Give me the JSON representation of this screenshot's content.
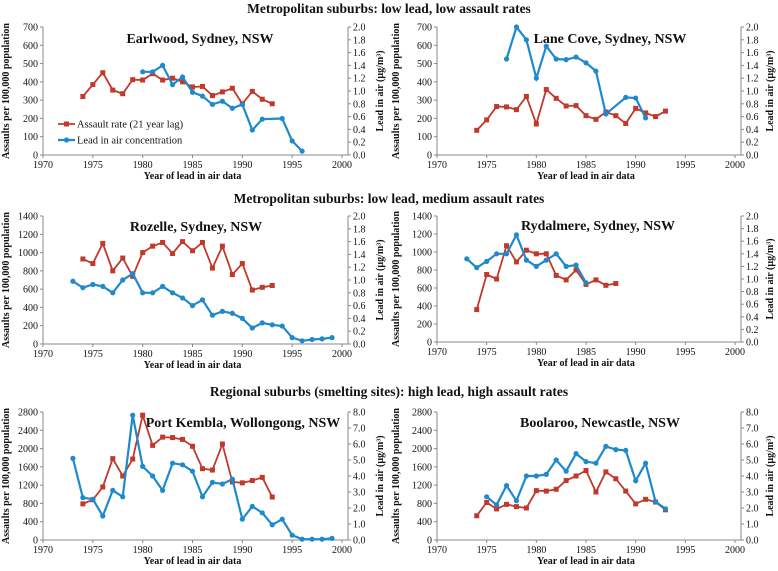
{
  "colors": {
    "assault": "#c0392b",
    "lead": "#1f8acb",
    "axis": "#888888"
  },
  "legend": {
    "assault": "Assault rate (21 year lag)",
    "lead": "Lead in air concentration"
  },
  "axis_titles": {
    "x": "Year of lead in air data",
    "y_left": "Assaults per 100,000 population",
    "y_right": "Lead in air (µg/m³)"
  },
  "sections": [
    "Metropolitan suburbs: low lead, low assault rates",
    "Metropolitan suburbs: low lead, medium assault rates",
    "Regional suburbs (smelting sites): high lead, high assault rates"
  ],
  "chart_data": [
    {
      "type": "line",
      "title": "Earlwood, Sydney, NSW",
      "xlabel": "Year of lead in air data",
      "ylabel": "Assaults per 100,000 population",
      "y2label": "Lead in air (µg/m³)",
      "xlim": [
        1970,
        2000
      ],
      "ylim": [
        0,
        700
      ],
      "y2lim": [
        0,
        2.0
      ],
      "legend": "left",
      "xticks": [
        1970,
        1975,
        1980,
        1985,
        1990,
        1995,
        2000
      ],
      "yticks": [
        0,
        100,
        200,
        300,
        400,
        500,
        600,
        700
      ],
      "y2ticks": [
        "0.0",
        "0.2",
        "0.4",
        "0.6",
        "0.8",
        "1.0",
        "1.2",
        "1.4",
        "1.6",
        "1.8",
        "2.0"
      ],
      "series": [
        {
          "name": "Assault rate (21 year lag)",
          "axis": "left",
          "x": [
            1974,
            1975,
            1976,
            1977,
            1978,
            1979,
            1980,
            1981,
            1982,
            1983,
            1984,
            1985,
            1986,
            1987,
            1988,
            1989,
            1990,
            1991,
            1992,
            1993
          ],
          "values": [
            320,
            385,
            450,
            355,
            335,
            412,
            410,
            445,
            410,
            420,
            400,
            372,
            375,
            325,
            345,
            365,
            280,
            348,
            305,
            280
          ]
        },
        {
          "name": "Lead in air concentration",
          "axis": "right",
          "x": [
            1980,
            1981,
            1982,
            1983,
            1984,
            1985,
            1986,
            1987,
            1988,
            1989,
            1990,
            1991,
            1992,
            1994,
            1995,
            1996
          ],
          "values": [
            1.3,
            1.3,
            1.4,
            1.1,
            1.22,
            0.98,
            0.92,
            0.79,
            0.84,
            0.73,
            0.79,
            0.39,
            0.56,
            0.57,
            0.22,
            0.06
          ]
        }
      ]
    },
    {
      "type": "line",
      "title": "Lane Cove, Sydney, NSW",
      "xlabel": "Year of lead in air data",
      "ylabel": "Assaults per 100,000 population",
      "y2label": "Lead in air (µg/m³)",
      "xlim": [
        1970,
        2000
      ],
      "ylim": [
        0,
        700
      ],
      "y2lim": [
        0,
        2.0
      ],
      "xticks": [
        1970,
        1975,
        1980,
        1985,
        1990,
        1995,
        2000
      ],
      "yticks": [
        0,
        100,
        200,
        300,
        400,
        500,
        600,
        700
      ],
      "y2ticks": [
        "0.0",
        "0.2",
        "0.4",
        "0.6",
        "0.8",
        "1.0",
        "1.2",
        "1.4",
        "1.6",
        "1.8",
        "2.0"
      ],
      "series": [
        {
          "name": "Assault rate (21 year lag)",
          "axis": "left",
          "x": [
            1974,
            1975,
            1976,
            1977,
            1978,
            1979,
            1980,
            1981,
            1982,
            1983,
            1984,
            1985,
            1986,
            1987,
            1988,
            1989,
            1990,
            1991,
            1992,
            1993
          ],
          "values": [
            135,
            192,
            265,
            263,
            248,
            320,
            170,
            358,
            310,
            268,
            270,
            215,
            195,
            235,
            215,
            172,
            255,
            230,
            210,
            240
          ]
        },
        {
          "name": "Lead in air concentration",
          "axis": "right",
          "x": [
            1977,
            1978,
            1979,
            1980,
            1981,
            1982,
            1983,
            1984,
            1985,
            1986,
            1987,
            1989,
            1990,
            1991
          ],
          "values": [
            1.5,
            2.0,
            1.8,
            1.2,
            1.7,
            1.5,
            1.49,
            1.53,
            1.44,
            1.31,
            0.64,
            0.9,
            0.89,
            0.58
          ]
        }
      ]
    },
    {
      "type": "line",
      "title": "Rozelle, Sydney, NSW",
      "xlabel": "Year of lead in air data",
      "ylabel": "Assaults per 100,000 population",
      "y2label": "Lead in air (µg/m³)",
      "xlim": [
        1970,
        2000
      ],
      "ylim": [
        0,
        1400
      ],
      "y2lim": [
        0,
        2.0
      ],
      "xticks": [
        1970,
        1975,
        1980,
        1985,
        1990,
        1995,
        2000
      ],
      "yticks": [
        0,
        200,
        400,
        600,
        800,
        1000,
        1200,
        1400
      ],
      "y2ticks": [
        "0.0",
        "0.2",
        "0.4",
        "0.6",
        "0.8",
        "1.0",
        "1.2",
        "1.4",
        "1.6",
        "1.8",
        "2.0"
      ],
      "series": [
        {
          "name": "Assault rate (21 year lag)",
          "axis": "left",
          "x": [
            1974,
            1975,
            1976,
            1977,
            1978,
            1979,
            1980,
            1981,
            1982,
            1983,
            1984,
            1985,
            1986,
            1987,
            1988,
            1989,
            1990,
            1991,
            1992,
            1993
          ],
          "values": [
            930,
            880,
            1100,
            800,
            940,
            740,
            1000,
            1070,
            1110,
            990,
            1120,
            1020,
            1110,
            830,
            1070,
            760,
            880,
            590,
            620,
            640
          ]
        },
        {
          "name": "Lead in air concentration",
          "axis": "right",
          "x": [
            1973,
            1974,
            1975,
            1976,
            1977,
            1978,
            1979,
            1980,
            1981,
            1982,
            1983,
            1984,
            1985,
            1986,
            1987,
            1988,
            1989,
            1990,
            1991,
            1992,
            1993,
            1994,
            1995,
            1996,
            1997,
            1998,
            1999
          ],
          "values": [
            0.98,
            0.88,
            0.93,
            0.9,
            0.8,
            1.0,
            1.1,
            0.8,
            0.8,
            0.9,
            0.8,
            0.72,
            0.6,
            0.69,
            0.45,
            0.51,
            0.48,
            0.4,
            0.25,
            0.33,
            0.3,
            0.28,
            0.1,
            0.05,
            0.07,
            0.08,
            0.1
          ]
        }
      ]
    },
    {
      "type": "line",
      "title": "Rydalmere, Sydney, NSW",
      "xlabel": "Year of lead in air data",
      "ylabel": "Assaults per 100,000 population",
      "y2label": "Lead in air (µg/m³)",
      "xlim": [
        1970,
        2000
      ],
      "ylim": [
        0,
        1400
      ],
      "y2lim": [
        0,
        2.0
      ],
      "xticks": [
        1970,
        1975,
        1980,
        1985,
        1990,
        1995,
        2000
      ],
      "yticks": [
        0,
        200,
        400,
        600,
        800,
        1000,
        1200,
        1400
      ],
      "y2ticks": [
        "0.0",
        "0.2",
        "0.4",
        "0.6",
        "0.8",
        "1.0",
        "1.2",
        "1.4",
        "1.6",
        "1.8",
        "2.0"
      ],
      "series": [
        {
          "name": "Assault rate (21 year lag)",
          "axis": "left",
          "x": [
            1974,
            1975,
            1976,
            1977,
            1978,
            1979,
            1980,
            1981,
            1982,
            1983,
            1984,
            1985,
            1986,
            1987,
            1988
          ],
          "values": [
            360,
            750,
            700,
            1070,
            890,
            1020,
            980,
            980,
            740,
            690,
            800,
            640,
            690,
            630,
            650
          ]
        },
        {
          "name": "Lead in air concentration",
          "axis": "right",
          "x": [
            1973,
            1974,
            1975,
            1976,
            1977,
            1978,
            1979,
            1980,
            1981,
            1982,
            1983,
            1984,
            1985
          ],
          "values": [
            1.32,
            1.18,
            1.28,
            1.4,
            1.4,
            1.7,
            1.3,
            1.2,
            1.3,
            1.4,
            1.2,
            1.22,
            0.94
          ]
        }
      ]
    },
    {
      "type": "line",
      "title": "Port Kembla, Wollongong, NSW",
      "xlabel": "Year of lead in air data",
      "ylabel": "Assaults per 100,000 population",
      "y2label": "Lead in air (µg/m³)",
      "xlim": [
        1970,
        2000
      ],
      "ylim": [
        0,
        2800
      ],
      "y2lim": [
        0,
        8.0
      ],
      "xticks": [
        1970,
        1975,
        1980,
        1985,
        1990,
        1995,
        2000
      ],
      "yticks": [
        0,
        400,
        800,
        1200,
        1600,
        2000,
        2400,
        2800
      ],
      "y2ticks": [
        "0.0",
        "1.0",
        "2.0",
        "3.0",
        "4.0",
        "5.0",
        "6.0",
        "7.0",
        "8.0"
      ],
      "series": [
        {
          "name": "Assault rate (21 year lag)",
          "axis": "left",
          "x": [
            1974,
            1975,
            1976,
            1977,
            1978,
            1979,
            1980,
            1981,
            1982,
            1983,
            1984,
            1985,
            1986,
            1987,
            1988,
            1989,
            1990,
            1991,
            1992,
            1993
          ],
          "values": [
            790,
            880,
            1160,
            1780,
            1400,
            1770,
            2730,
            2070,
            2250,
            2240,
            2200,
            2050,
            1560,
            1530,
            2100,
            1270,
            1250,
            1300,
            1370,
            940
          ]
        },
        {
          "name": "Lead in air concentration",
          "axis": "right",
          "x": [
            1973,
            1974,
            1975,
            1976,
            1977,
            1978,
            1979,
            1980,
            1981,
            1982,
            1983,
            1984,
            1985,
            1986,
            1987,
            1988,
            1989,
            1990,
            1991,
            1992,
            1993,
            1994,
            1995,
            1996,
            1997,
            1998,
            1999
          ],
          "values": [
            5.1,
            2.65,
            2.55,
            1.5,
            3.1,
            2.7,
            7.8,
            4.6,
            4.0,
            3.1,
            4.8,
            4.7,
            4.3,
            2.7,
            3.6,
            3.5,
            3.8,
            1.3,
            2.1,
            1.7,
            0.95,
            1.3,
            0.3,
            0.05,
            0.05,
            0.05,
            0.1
          ]
        }
      ]
    },
    {
      "type": "line",
      "title": "Boolaroo, Newcastle, NSW",
      "xlabel": "Year of lead in air data",
      "ylabel": "Assaults per 100,000 population",
      "y2label": "Lead in air (µg/m³)",
      "xlim": [
        1970,
        2000
      ],
      "ylim": [
        0,
        2800
      ],
      "y2lim": [
        0,
        8.0
      ],
      "xticks": [
        1970,
        1975,
        1980,
        1985,
        1990,
        1995,
        2000
      ],
      "yticks": [
        0,
        400,
        800,
        1200,
        1600,
        2000,
        2400,
        2800
      ],
      "y2ticks": [
        "0.0",
        "1.0",
        "2.0",
        "3.0",
        "4.0",
        "5.0",
        "6.0",
        "7.0",
        "8.0"
      ],
      "series": [
        {
          "name": "Assault rate (21 year lag)",
          "axis": "left",
          "x": [
            1974,
            1975,
            1976,
            1977,
            1978,
            1979,
            1980,
            1981,
            1982,
            1983,
            1984,
            1985,
            1986,
            1987,
            1988,
            1989,
            1990,
            1991,
            1992,
            1993
          ],
          "values": [
            530,
            820,
            680,
            780,
            730,
            700,
            1080,
            1070,
            1110,
            1300,
            1400,
            1520,
            1050,
            1490,
            1340,
            1070,
            790,
            890,
            830,
            660
          ]
        },
        {
          "name": "Lead in air concentration",
          "axis": "right",
          "x": [
            1975,
            1976,
            1977,
            1978,
            1979,
            1980,
            1981,
            1982,
            1983,
            1984,
            1985,
            1986,
            1987,
            1988,
            1989,
            1990,
            1991,
            1992,
            1993
          ],
          "values": [
            2.7,
            2.2,
            3.4,
            2.45,
            4.0,
            4.0,
            4.1,
            5.0,
            4.3,
            5.4,
            4.9,
            4.8,
            5.85,
            5.65,
            5.6,
            3.7,
            4.8,
            2.4,
            1.95
          ]
        }
      ]
    }
  ]
}
